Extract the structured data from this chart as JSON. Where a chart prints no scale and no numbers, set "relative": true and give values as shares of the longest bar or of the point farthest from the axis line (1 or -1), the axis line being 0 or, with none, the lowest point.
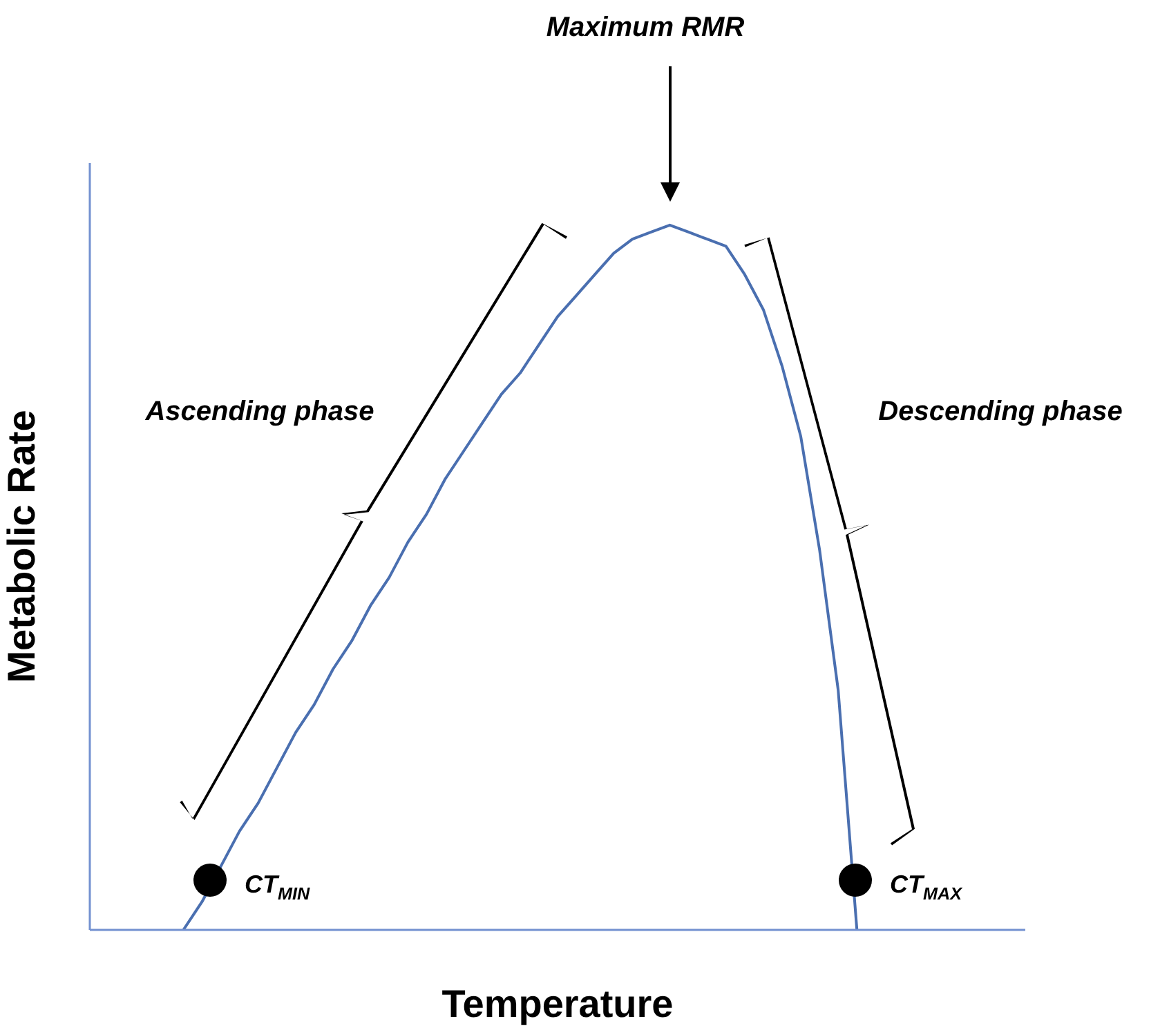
{
  "chart_data": {
    "type": "line",
    "relative": true,
    "xlabel": "Temperature",
    "ylabel": "Metabolic Rate",
    "annotations": [
      "Maximum RMR",
      "Ascending phase",
      "Descending phase",
      "CT$_{MIN}$",
      "CT$_{MAX}$"
    ],
    "categories": [
      null,
      null,
      null,
      null,
      null,
      null,
      null,
      null,
      null,
      null,
      null,
      null,
      null,
      null,
      null,
      null,
      null,
      null,
      null,
      null,
      null,
      null,
      null,
      null,
      null,
      null,
      null,
      null,
      null,
      null,
      null,
      null,
      null,
      null,
      null,
      null,
      null,
      null,
      null,
      null,
      null,
      null,
      null,
      null,
      null,
      null,
      null,
      null,
      null,
      null,
      null
    ],
    "series": [
      {
        "color": "#4a6fb0",
        "values": [
          null,
          null,
          null,
          null,
          null,
          0,
          0.04,
          0.09,
          0.14,
          0.18,
          0.23,
          0.28,
          0.32,
          0.37,
          0.41,
          0.46,
          0.5,
          0.55,
          0.59,
          0.64,
          0.68,
          0.72,
          0.76,
          0.79,
          0.83,
          0.87,
          0.9,
          0.93,
          0.96,
          0.98,
          0.99,
          1,
          0.99,
          0.98,
          0.97,
          0.93,
          0.88,
          0.8,
          0.7,
          0.54,
          0.34,
          0,
          null,
          null,
          null,
          null,
          null,
          null,
          null,
          null,
          null
        ]
      }
    ]
  }
}
